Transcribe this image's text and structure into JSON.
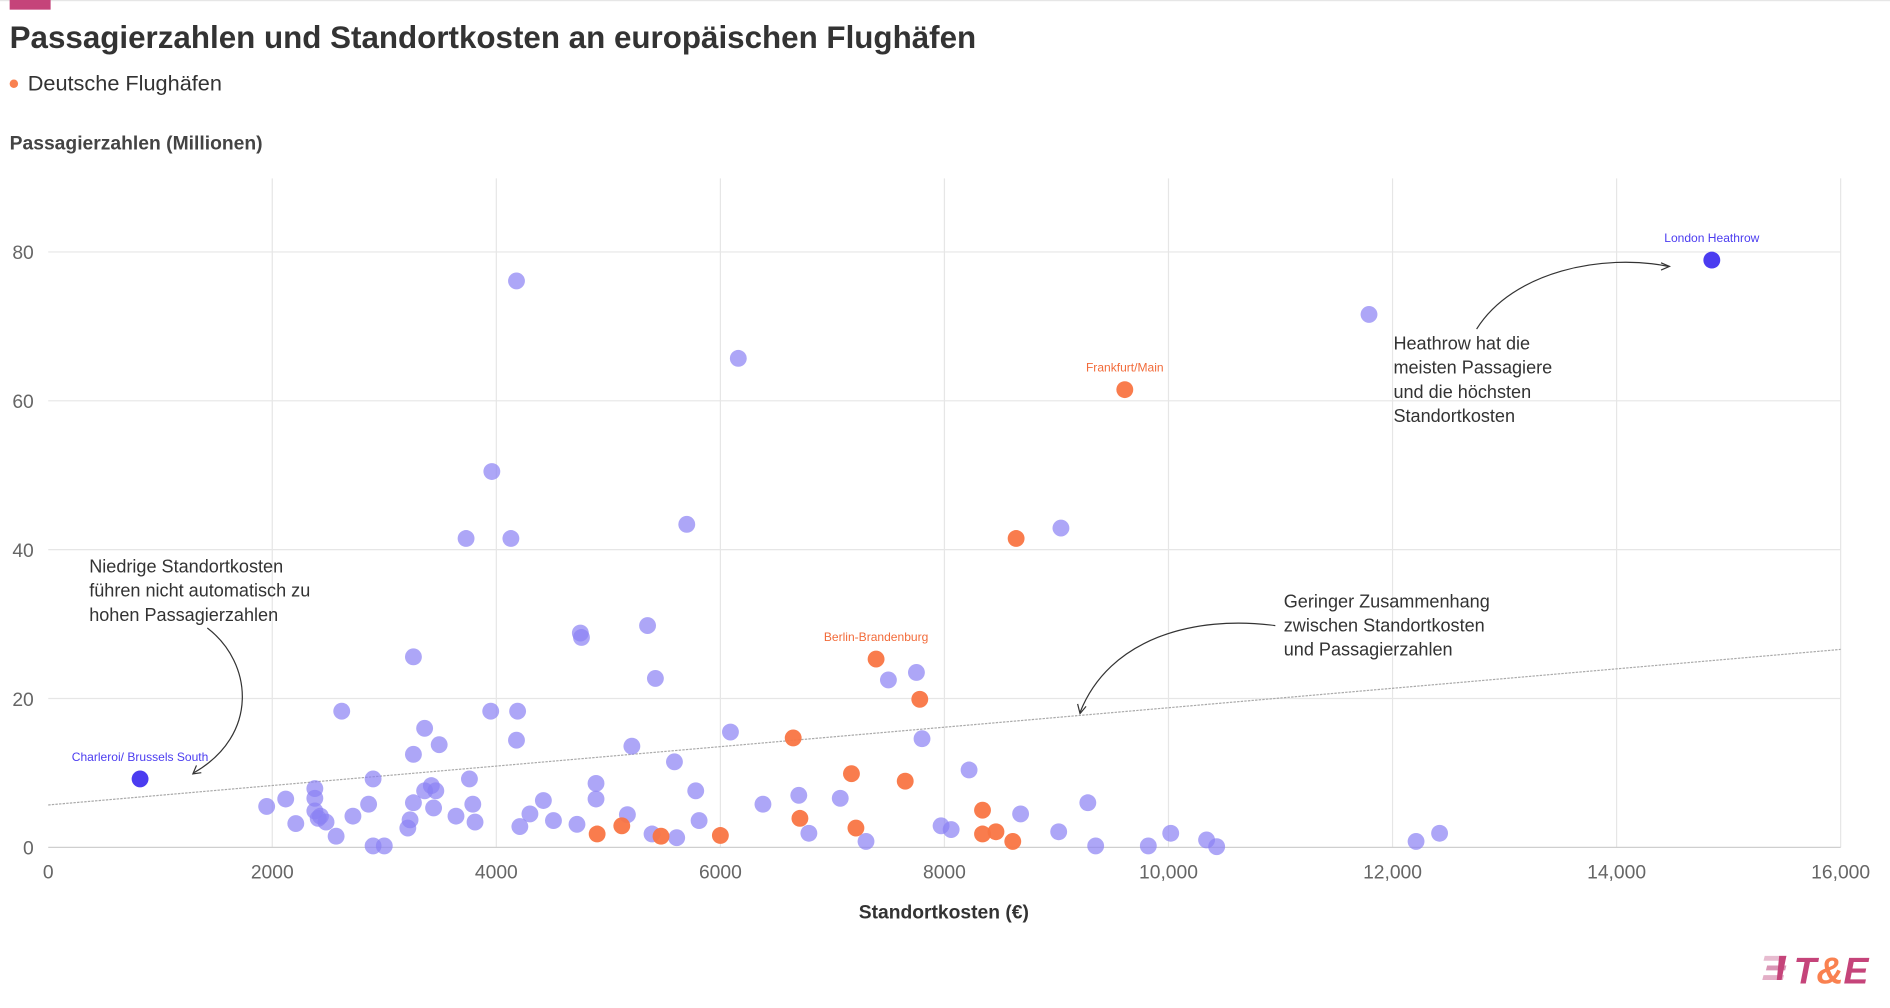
{
  "header": {
    "title": "Passagierzahlen und Standortkosten an europäischen Flughäfen",
    "legend_label": "Deutsche Flughäfen",
    "brand_color": "#c5447a"
  },
  "chart_data": {
    "type": "scatter",
    "title": "Passagierzahlen und Standortkosten an europäischen Flughäfen",
    "xlabel": "Standortkosten (€)",
    "ylabel": "Passagierzahlen (Millionen)",
    "xlim": [
      0,
      16000
    ],
    "ylim": [
      0,
      90
    ],
    "x_ticks": [
      "0",
      "2000",
      "4000",
      "6000",
      "8000",
      "10,000",
      "12,000",
      "14,000",
      "16,000"
    ],
    "x_tick_values": [
      0,
      2000,
      4000,
      6000,
      8000,
      10000,
      12000,
      14000,
      16000
    ],
    "y_ticks": [
      "0",
      "20",
      "40",
      "60",
      "80"
    ],
    "y_tick_values": [
      0,
      20,
      40,
      60,
      80
    ],
    "grid": true,
    "legend": {
      "position": "top-left",
      "entries": [
        "Deutsche Flughäfen"
      ]
    },
    "colors": {
      "other": "#8a80f4",
      "german": "#f97543",
      "highlight": "#4b3cf0",
      "trend": "#aaaaaa"
    },
    "trendline": {
      "x": [
        0,
        16000
      ],
      "y": [
        5.7,
        26.6
      ]
    },
    "series": [
      {
        "group": "other",
        "points": [
          [
            1950,
            5.5
          ],
          [
            2120,
            6.5
          ],
          [
            2210,
            3.2
          ],
          [
            2380,
            7.9
          ],
          [
            2380,
            6.6
          ],
          [
            2380,
            4.9
          ],
          [
            2410,
            3.9
          ],
          [
            2430,
            4.2
          ],
          [
            2480,
            3.4
          ],
          [
            2570,
            1.5
          ],
          [
            2620,
            18.3
          ],
          [
            2720,
            4.2
          ],
          [
            2860,
            5.8
          ],
          [
            2900,
            9.2
          ],
          [
            2900,
            0.2
          ],
          [
            3000,
            0.2
          ],
          [
            3210,
            2.6
          ],
          [
            3230,
            3.7
          ],
          [
            3260,
            6.0
          ],
          [
            3260,
            12.5
          ],
          [
            3260,
            25.6
          ],
          [
            3360,
            7.6
          ],
          [
            3360,
            16.0
          ],
          [
            3420,
            8.3
          ],
          [
            3440,
            5.3
          ],
          [
            3460,
            7.6
          ],
          [
            3490,
            13.8
          ],
          [
            3640,
            4.2
          ],
          [
            3730,
            41.5
          ],
          [
            3760,
            9.2
          ],
          [
            3790,
            5.8
          ],
          [
            3810,
            3.4
          ],
          [
            3950,
            18.3
          ],
          [
            3960,
            50.5
          ],
          [
            4130,
            41.5
          ],
          [
            4180,
            76.1
          ],
          [
            4190,
            18.3
          ],
          [
            4180,
            14.4
          ],
          [
            4210,
            2.8
          ],
          [
            4300,
            4.5
          ],
          [
            4420,
            6.3
          ],
          [
            4510,
            3.6
          ],
          [
            4720,
            3.1
          ],
          [
            4750,
            28.8
          ],
          [
            4760,
            28.2
          ],
          [
            4890,
            8.6
          ],
          [
            4890,
            6.5
          ],
          [
            5170,
            4.4
          ],
          [
            5210,
            13.6
          ],
          [
            5350,
            29.8
          ],
          [
            5390,
            1.8
          ],
          [
            5420,
            22.7
          ],
          [
            5590,
            11.5
          ],
          [
            5610,
            1.3
          ],
          [
            5700,
            43.4
          ],
          [
            5780,
            7.6
          ],
          [
            5810,
            3.6
          ],
          [
            6090,
            15.5
          ],
          [
            6160,
            65.7
          ],
          [
            6380,
            5.8
          ],
          [
            6700,
            7.0
          ],
          [
            6790,
            1.9
          ],
          [
            7070,
            6.6
          ],
          [
            7300,
            0.8
          ],
          [
            7500,
            22.5
          ],
          [
            7750,
            23.5
          ],
          [
            7800,
            14.6
          ],
          [
            7970,
            2.9
          ],
          [
            8060,
            2.4
          ],
          [
            8220,
            10.4
          ],
          [
            8680,
            4.5
          ],
          [
            9020,
            2.1
          ],
          [
            9040,
            42.9
          ],
          [
            9280,
            6.0
          ],
          [
            9350,
            0.2
          ],
          [
            9820,
            0.2
          ],
          [
            10020,
            1.9
          ],
          [
            10340,
            1.0
          ],
          [
            10430,
            0.1
          ],
          [
            11790,
            71.6
          ],
          [
            12210,
            0.8
          ],
          [
            12420,
            1.9
          ]
        ]
      },
      {
        "group": "german",
        "points": [
          [
            4900,
            1.8
          ],
          [
            5120,
            2.9
          ],
          [
            5470,
            1.5
          ],
          [
            6000,
            1.6
          ],
          [
            6650,
            14.7
          ],
          [
            6710,
            3.9
          ],
          [
            7170,
            9.9
          ],
          [
            7210,
            2.6
          ],
          [
            7390,
            25.3
          ],
          [
            7650,
            8.9
          ],
          [
            7780,
            19.9
          ],
          [
            8340,
            5.0
          ],
          [
            8340,
            1.8
          ],
          [
            8460,
            2.1
          ],
          [
            8610,
            0.8
          ],
          [
            8640,
            41.5
          ],
          [
            9610,
            61.5
          ]
        ]
      },
      {
        "group": "highlight",
        "points": [
          [
            820,
            9.2
          ],
          [
            14850,
            78.9
          ]
        ]
      }
    ],
    "point_labels": [
      {
        "text": "London Heathrow",
        "x": 14850,
        "y": 78.9,
        "group": "highlight"
      },
      {
        "text": "Charleroi/ Brussels South",
        "x": 820,
        "y": 9.2,
        "group": "highlight"
      },
      {
        "text": "Frankfurt/Main",
        "x": 9610,
        "y": 61.5,
        "group": "german"
      },
      {
        "text": "Berlin-Brandenburg",
        "x": 7390,
        "y": 25.3,
        "group": "german"
      }
    ],
    "annotations": [
      {
        "lines": [
          "Heathrow hat die",
          "meisten Passagiere",
          "und die höchsten",
          "Standortkosten"
        ]
      },
      {
        "lines": [
          "Niedrige Standortkosten",
          "führen nicht automatisch zu",
          "hohen Passagierzahlen"
        ]
      },
      {
        "lines": [
          "Geringer Zusammenhang",
          "zwischen Standortkosten",
          "und Passagierzahlen"
        ]
      }
    ]
  },
  "logo": {
    "text": "T&E"
  }
}
